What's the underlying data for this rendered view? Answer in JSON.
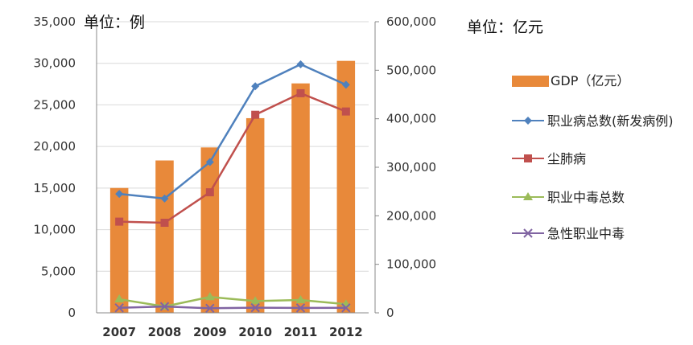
{
  "chart_data": {
    "type": "bar+line",
    "categories": [
      "2007",
      "2008",
      "2009",
      "2010",
      "2011",
      "2012"
    ],
    "left_axis": {
      "unit_label": "单位：例",
      "ticks": [
        "0",
        "5,000",
        "10,000",
        "15,000",
        "20,000",
        "25,000",
        "30,000",
        "35,000"
      ],
      "ylim": [
        0,
        35000
      ]
    },
    "right_axis": {
      "unit_label": "单位：亿元",
      "ticks": [
        "0",
        "100,000",
        "200,000",
        "300,000",
        "400,000",
        "500,000",
        "600,000"
      ],
      "ylim": [
        0,
        600000
      ]
    },
    "bar_series": {
      "name": "GDP（亿元）",
      "axis": "right",
      "color": "#e8893a",
      "values": [
        257306,
        314045,
        340903,
        401202,
        472882,
        519322
      ]
    },
    "line_series": [
      {
        "name": "职业病总数(新发病例)",
        "axis": "left",
        "color": "#4f81bd",
        "marker": "diamond",
        "values": [
          14296,
          13744,
          18128,
          27240,
          29879,
          27420
        ]
      },
      {
        "name": "尘肺病",
        "axis": "left",
        "color": "#c0504d",
        "marker": "square",
        "values": [
          10963,
          10829,
          14495,
          23812,
          26401,
          24206
        ]
      },
      {
        "name": "职业中毒总数",
        "axis": "left",
        "color": "#9bbb59",
        "marker": "triangle",
        "values": [
          1638,
          760,
          1912,
          1417,
          1541,
          1040
        ]
      },
      {
        "name": "急性职业中毒",
        "axis": "left",
        "color": "#8064a2",
        "marker": "x",
        "values": [
          600,
          760,
          552,
          617,
          590,
          601
        ]
      }
    ],
    "legend": [
      "GDP（亿元）",
      "职业病总数(新发病例)",
      "尘肺病",
      "职业中毒总数",
      "急性职业中毒"
    ],
    "legend_placement": "right",
    "grid": true
  }
}
